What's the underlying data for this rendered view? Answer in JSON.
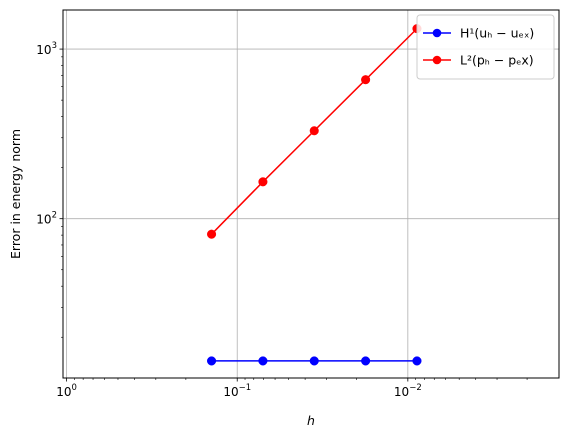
{
  "chart_data": {
    "type": "line",
    "xlabel": "h",
    "ylabel": "Error in energy norm",
    "xscale": "log",
    "yscale": "log",
    "x_axis_inverted": true,
    "xlim": [
      1.05,
      0.0013
    ],
    "ylim": [
      11.5,
      1700
    ],
    "grid": true,
    "legend_position": "top-right",
    "x": [
      0.1414,
      0.0707,
      0.03536,
      0.01768,
      0.00884
    ],
    "x_ticks": [
      {
        "value": 1,
        "base": "10",
        "exp": "0"
      },
      {
        "value": 0.1,
        "base": "10",
        "exp": "−1"
      },
      {
        "value": 0.01,
        "base": "10",
        "exp": "−2"
      }
    ],
    "y_ticks": [
      {
        "value": 100,
        "base": "10",
        "exp": "2"
      },
      {
        "value": 1000,
        "base": "10",
        "exp": "3"
      }
    ],
    "series": [
      {
        "name": "H¹(uₕ − uₑₓ)",
        "color": "#0000ff",
        "marker": "circle",
        "values": [
          14.5,
          14.5,
          14.5,
          14.5,
          14.5
        ]
      },
      {
        "name": "L²(pₕ − pₑx)",
        "color": "#ff0000",
        "marker": "circle",
        "values": [
          81,
          165,
          330,
          660,
          1320
        ]
      }
    ]
  }
}
